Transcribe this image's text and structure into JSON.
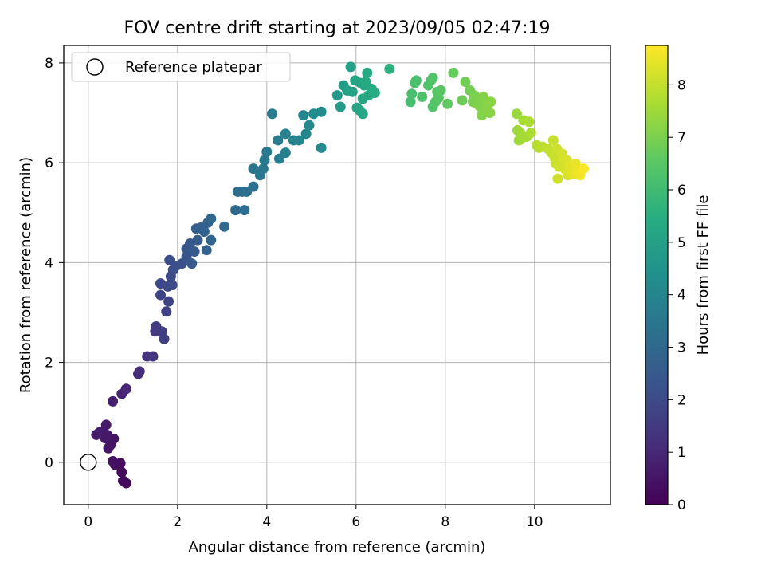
{
  "chart_data": {
    "type": "scatter",
    "title": "FOV centre drift starting at 2023/09/05 02:47:19",
    "xlabel": "Angular distance from reference (arcmin)",
    "ylabel": "Rotation from reference (arcmin)",
    "xlim": [
      -0.55,
      11.7
    ],
    "ylim": [
      -0.85,
      8.35
    ],
    "xticks": [
      0,
      2,
      4,
      6,
      8,
      10
    ],
    "yticks": [
      0,
      2,
      4,
      6,
      8
    ],
    "grid": true,
    "legend": {
      "placement": "top-left",
      "entries": [
        "Reference platepar"
      ]
    },
    "reference_point": {
      "x": 0,
      "y": 0,
      "label": "Reference platepar"
    },
    "colorbar": {
      "label": "Hours from first FF file",
      "colormap": "viridis",
      "range": [
        0,
        8.75
      ],
      "ticks": [
        0,
        1,
        2,
        3,
        4,
        5,
        6,
        7,
        8
      ]
    },
    "points": [
      {
        "x": 0.85,
        "y": -0.42,
        "t": 0.15
      },
      {
        "x": 0.78,
        "y": -0.37,
        "t": 0.2
      },
      {
        "x": 0.75,
        "y": -0.2,
        "t": 0.25
      },
      {
        "x": 0.72,
        "y": -0.02,
        "t": 0.3
      },
      {
        "x": 0.6,
        "y": -0.05,
        "t": 0.35
      },
      {
        "x": 0.55,
        "y": 0.02,
        "t": 0.4
      },
      {
        "x": 0.57,
        "y": 0.47,
        "t": 0.45
      },
      {
        "x": 0.5,
        "y": 0.35,
        "t": 0.5
      },
      {
        "x": 0.45,
        "y": 0.28,
        "t": 0.52
      },
      {
        "x": 0.42,
        "y": 0.55,
        "t": 0.55
      },
      {
        "x": 0.38,
        "y": 0.48,
        "t": 0.58
      },
      {
        "x": 0.4,
        "y": 0.75,
        "t": 0.6
      },
      {
        "x": 0.32,
        "y": 0.62,
        "t": 0.62
      },
      {
        "x": 0.25,
        "y": 0.6,
        "t": 0.65
      },
      {
        "x": 0.18,
        "y": 0.55,
        "t": 0.68
      },
      {
        "x": 0.55,
        "y": 1.22,
        "t": 0.8
      },
      {
        "x": 0.75,
        "y": 1.37,
        "t": 0.9
      },
      {
        "x": 0.85,
        "y": 1.47,
        "t": 0.95
      },
      {
        "x": 1.12,
        "y": 1.77,
        "t": 1.1
      },
      {
        "x": 1.15,
        "y": 1.82,
        "t": 1.15
      },
      {
        "x": 1.32,
        "y": 2.12,
        "t": 1.3
      },
      {
        "x": 1.45,
        "y": 2.12,
        "t": 1.35
      },
      {
        "x": 1.5,
        "y": 2.62,
        "t": 1.5
      },
      {
        "x": 1.52,
        "y": 2.72,
        "t": 1.55
      },
      {
        "x": 1.65,
        "y": 2.62,
        "t": 1.6
      },
      {
        "x": 1.7,
        "y": 2.47,
        "t": 1.65
      },
      {
        "x": 1.75,
        "y": 3.02,
        "t": 1.75
      },
      {
        "x": 1.8,
        "y": 3.22,
        "t": 1.8
      },
      {
        "x": 1.62,
        "y": 3.35,
        "t": 1.85
      },
      {
        "x": 1.62,
        "y": 3.58,
        "t": 1.9
      },
      {
        "x": 1.78,
        "y": 3.52,
        "t": 1.95
      },
      {
        "x": 1.88,
        "y": 3.55,
        "t": 2.0
      },
      {
        "x": 1.85,
        "y": 3.72,
        "t": 2.02
      },
      {
        "x": 1.9,
        "y": 3.85,
        "t": 2.05
      },
      {
        "x": 1.82,
        "y": 4.05,
        "t": 2.1
      },
      {
        "x": 1.95,
        "y": 3.92,
        "t": 2.15
      },
      {
        "x": 2.1,
        "y": 3.98,
        "t": 2.2
      },
      {
        "x": 2.2,
        "y": 4.12,
        "t": 2.3
      },
      {
        "x": 2.2,
        "y": 4.28,
        "t": 2.35
      },
      {
        "x": 2.28,
        "y": 4.38,
        "t": 2.4
      },
      {
        "x": 2.32,
        "y": 3.98,
        "t": 2.45
      },
      {
        "x": 2.38,
        "y": 4.22,
        "t": 2.5
      },
      {
        "x": 2.45,
        "y": 4.45,
        "t": 2.55
      },
      {
        "x": 2.42,
        "y": 4.68,
        "t": 2.6
      },
      {
        "x": 2.52,
        "y": 4.7,
        "t": 2.65
      },
      {
        "x": 2.6,
        "y": 4.62,
        "t": 2.7
      },
      {
        "x": 2.68,
        "y": 4.8,
        "t": 2.75
      },
      {
        "x": 2.65,
        "y": 4.25,
        "t": 2.8
      },
      {
        "x": 2.75,
        "y": 4.45,
        "t": 2.85
      },
      {
        "x": 2.75,
        "y": 4.88,
        "t": 2.9
      },
      {
        "x": 3.05,
        "y": 4.72,
        "t": 3.0
      },
      {
        "x": 3.3,
        "y": 5.05,
        "t": 3.05
      },
      {
        "x": 3.35,
        "y": 5.42,
        "t": 3.1
      },
      {
        "x": 3.45,
        "y": 5.42,
        "t": 3.15
      },
      {
        "x": 3.5,
        "y": 5.05,
        "t": 3.2
      },
      {
        "x": 3.55,
        "y": 5.42,
        "t": 3.25
      },
      {
        "x": 3.7,
        "y": 5.52,
        "t": 3.3
      },
      {
        "x": 3.7,
        "y": 5.88,
        "t": 3.4
      },
      {
        "x": 3.85,
        "y": 5.75,
        "t": 3.45
      },
      {
        "x": 3.92,
        "y": 5.88,
        "t": 3.5
      },
      {
        "x": 3.95,
        "y": 6.05,
        "t": 3.55
      },
      {
        "x": 4.0,
        "y": 6.22,
        "t": 3.6
      },
      {
        "x": 4.12,
        "y": 6.98,
        "t": 3.65
      },
      {
        "x": 4.25,
        "y": 6.45,
        "t": 3.7
      },
      {
        "x": 4.28,
        "y": 6.08,
        "t": 3.75
      },
      {
        "x": 4.42,
        "y": 6.58,
        "t": 3.8
      },
      {
        "x": 4.42,
        "y": 6.2,
        "t": 3.85
      },
      {
        "x": 4.6,
        "y": 6.45,
        "t": 3.9
      },
      {
        "x": 4.72,
        "y": 6.45,
        "t": 3.95
      },
      {
        "x": 4.82,
        "y": 6.95,
        "t": 4.0
      },
      {
        "x": 4.88,
        "y": 6.58,
        "t": 4.05
      },
      {
        "x": 4.95,
        "y": 6.75,
        "t": 4.1
      },
      {
        "x": 5.05,
        "y": 6.98,
        "t": 4.15
      },
      {
        "x": 5.22,
        "y": 6.3,
        "t": 4.2
      },
      {
        "x": 5.22,
        "y": 7.02,
        "t": 4.25
      },
      {
        "x": 5.58,
        "y": 7.35,
        "t": 4.7
      },
      {
        "x": 5.65,
        "y": 7.12,
        "t": 4.8
      },
      {
        "x": 5.72,
        "y": 7.55,
        "t": 4.85
      },
      {
        "x": 5.8,
        "y": 7.45,
        "t": 4.9
      },
      {
        "x": 5.88,
        "y": 7.92,
        "t": 5.0
      },
      {
        "x": 5.92,
        "y": 7.42,
        "t": 5.05
      },
      {
        "x": 5.98,
        "y": 7.65,
        "t": 5.1
      },
      {
        "x": 6.02,
        "y": 7.1,
        "t": 5.12
      },
      {
        "x": 6.08,
        "y": 7.05,
        "t": 5.15
      },
      {
        "x": 6.1,
        "y": 7.6,
        "t": 5.18
      },
      {
        "x": 6.15,
        "y": 6.98,
        "t": 5.2
      },
      {
        "x": 6.18,
        "y": 7.55,
        "t": 5.22
      },
      {
        "x": 6.15,
        "y": 7.28,
        "t": 5.25
      },
      {
        "x": 6.22,
        "y": 7.62,
        "t": 5.28
      },
      {
        "x": 6.25,
        "y": 7.8,
        "t": 5.3
      },
      {
        "x": 6.28,
        "y": 7.35,
        "t": 5.32
      },
      {
        "x": 6.35,
        "y": 7.48,
        "t": 5.35
      },
      {
        "x": 6.42,
        "y": 7.4,
        "t": 5.38
      },
      {
        "x": 6.75,
        "y": 7.88,
        "t": 5.6
      },
      {
        "x": 7.22,
        "y": 7.22,
        "t": 6.1
      },
      {
        "x": 7.25,
        "y": 7.38,
        "t": 6.15
      },
      {
        "x": 7.32,
        "y": 7.6,
        "t": 6.2
      },
      {
        "x": 7.35,
        "y": 7.65,
        "t": 6.22
      },
      {
        "x": 7.48,
        "y": 7.32,
        "t": 6.25
      },
      {
        "x": 7.62,
        "y": 7.55,
        "t": 6.3
      },
      {
        "x": 7.68,
        "y": 7.65,
        "t": 6.32
      },
      {
        "x": 7.72,
        "y": 7.7,
        "t": 6.35
      },
      {
        "x": 7.72,
        "y": 7.12,
        "t": 6.38
      },
      {
        "x": 7.78,
        "y": 7.22,
        "t": 6.4
      },
      {
        "x": 7.82,
        "y": 7.42,
        "t": 6.42
      },
      {
        "x": 7.85,
        "y": 7.3,
        "t": 6.45
      },
      {
        "x": 7.9,
        "y": 7.45,
        "t": 6.48
      },
      {
        "x": 8.05,
        "y": 7.18,
        "t": 6.6
      },
      {
        "x": 8.18,
        "y": 7.8,
        "t": 6.7
      },
      {
        "x": 8.38,
        "y": 7.25,
        "t": 6.8
      },
      {
        "x": 8.45,
        "y": 7.62,
        "t": 6.85
      },
      {
        "x": 8.55,
        "y": 7.45,
        "t": 6.9
      },
      {
        "x": 8.62,
        "y": 7.22,
        "t": 6.95
      },
      {
        "x": 8.65,
        "y": 7.35,
        "t": 7.0
      },
      {
        "x": 8.68,
        "y": 7.2,
        "t": 7.02
      },
      {
        "x": 8.75,
        "y": 7.28,
        "t": 7.05
      },
      {
        "x": 8.78,
        "y": 7.12,
        "t": 7.08
      },
      {
        "x": 8.82,
        "y": 6.95,
        "t": 7.1
      },
      {
        "x": 8.85,
        "y": 7.32,
        "t": 7.12
      },
      {
        "x": 8.9,
        "y": 7.05,
        "t": 7.15
      },
      {
        "x": 8.95,
        "y": 7.18,
        "t": 7.18
      },
      {
        "x": 9.0,
        "y": 7.0,
        "t": 7.2
      },
      {
        "x": 9.02,
        "y": 7.22,
        "t": 7.22
      },
      {
        "x": 9.6,
        "y": 6.98,
        "t": 7.4
      },
      {
        "x": 9.62,
        "y": 6.65,
        "t": 7.45
      },
      {
        "x": 9.65,
        "y": 6.45,
        "t": 7.5
      },
      {
        "x": 9.68,
        "y": 6.6,
        "t": 7.52
      },
      {
        "x": 9.72,
        "y": 6.5,
        "t": 7.55
      },
      {
        "x": 9.75,
        "y": 6.85,
        "t": 7.58
      },
      {
        "x": 9.82,
        "y": 6.52,
        "t": 7.6
      },
      {
        "x": 9.88,
        "y": 6.82,
        "t": 7.65
      },
      {
        "x": 9.92,
        "y": 6.6,
        "t": 7.68
      },
      {
        "x": 10.05,
        "y": 6.35,
        "t": 7.8
      },
      {
        "x": 10.1,
        "y": 6.3,
        "t": 7.85
      },
      {
        "x": 10.18,
        "y": 6.32,
        "t": 7.9
      },
      {
        "x": 10.3,
        "y": 6.28,
        "t": 7.95
      },
      {
        "x": 10.38,
        "y": 6.2,
        "t": 8.0
      },
      {
        "x": 10.42,
        "y": 6.45,
        "t": 8.02
      },
      {
        "x": 10.45,
        "y": 6.1,
        "t": 8.05
      },
      {
        "x": 10.48,
        "y": 5.98,
        "t": 8.08
      },
      {
        "x": 10.5,
        "y": 6.28,
        "t": 8.1
      },
      {
        "x": 10.52,
        "y": 5.68,
        "t": 8.12
      },
      {
        "x": 10.55,
        "y": 5.92,
        "t": 8.15
      },
      {
        "x": 10.62,
        "y": 6.18,
        "t": 8.2
      },
      {
        "x": 10.65,
        "y": 6.05,
        "t": 8.22
      },
      {
        "x": 10.7,
        "y": 5.85,
        "t": 8.25
      },
      {
        "x": 10.72,
        "y": 6.05,
        "t": 8.28
      },
      {
        "x": 10.75,
        "y": 5.75,
        "t": 8.3
      },
      {
        "x": 10.78,
        "y": 5.95,
        "t": 8.35
      },
      {
        "x": 10.85,
        "y": 5.85,
        "t": 8.4
      },
      {
        "x": 10.88,
        "y": 5.78,
        "t": 8.45
      },
      {
        "x": 10.92,
        "y": 5.98,
        "t": 8.5
      },
      {
        "x": 10.98,
        "y": 5.82,
        "t": 8.55
      },
      {
        "x": 11.02,
        "y": 5.75,
        "t": 8.6
      },
      {
        "x": 11.1,
        "y": 5.88,
        "t": 8.7
      }
    ]
  }
}
